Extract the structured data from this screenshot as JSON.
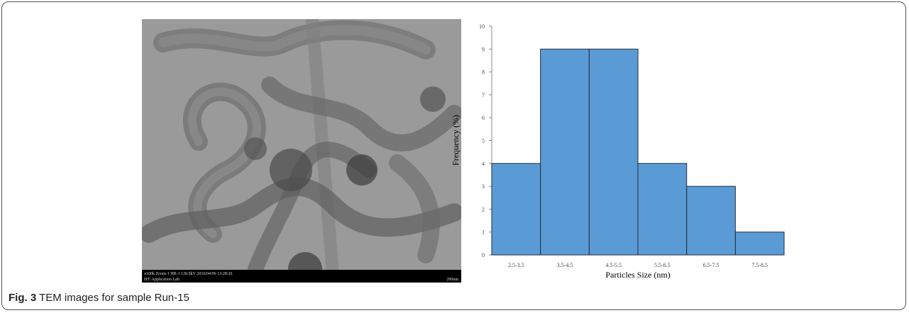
{
  "figure": {
    "label": "Fig. 3",
    "caption": "TEM images for sample Run-15"
  },
  "tem_image": {
    "info_line_1": "x100k Zoom-1 HR-1 120.0kV 2016/04/06 13:28:26",
    "info_line_2": "HT: Application Lab",
    "scale_label": "200nm"
  },
  "chart_data": {
    "type": "bar",
    "x_label": "Particles Size (nm)",
    "y_label": "Frequency (%)",
    "categories": [
      "2.5-3.5",
      "3.5-4.5",
      "4.5-5.5",
      "5.5-6.5",
      "6.5-7.5",
      "7.5-8.5"
    ],
    "values": [
      4,
      9,
      9,
      4,
      3,
      1
    ],
    "color": "#5b9bd5",
    "edge_color": "#1f2d3d",
    "ylim": [
      0,
      10
    ],
    "yticks": [
      0,
      1,
      2,
      3,
      4,
      5,
      6,
      7,
      8,
      9,
      10
    ],
    "grid": false
  }
}
